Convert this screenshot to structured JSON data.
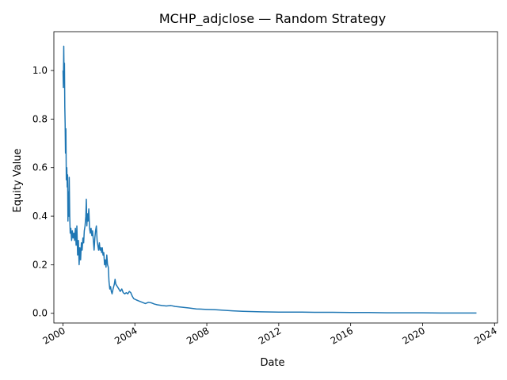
{
  "chart_data": {
    "type": "line",
    "title": "MCHP_adjclose — Random Strategy",
    "xlabel": "Date",
    "ylabel": "Equity Value",
    "x_ticks": [
      "2000",
      "2004",
      "2008",
      "2012",
      "2016",
      "2020",
      "2024"
    ],
    "y_ticks": [
      "0.0",
      "0.2",
      "0.4",
      "0.6",
      "0.8",
      "1.0"
    ],
    "xlim": [
      "1999-07-01",
      "2024-03-01"
    ],
    "ylim": [
      -0.04,
      1.16
    ],
    "grid": false,
    "line_color": "#1f77b4",
    "series": [
      {
        "points": [
          [
            "2000-01-03",
            1.0
          ],
          [
            "2000-01-10",
            0.93
          ],
          [
            "2000-01-18",
            1.1
          ],
          [
            "2000-01-25",
            0.95
          ],
          [
            "2000-02-01",
            1.03
          ],
          [
            "2000-02-08",
            0.85
          ],
          [
            "2000-02-15",
            0.78
          ],
          [
            "2000-02-22",
            0.66
          ],
          [
            "2000-03-01",
            0.76
          ],
          [
            "2000-03-10",
            0.55
          ],
          [
            "2000-03-20",
            0.6
          ],
          [
            "2000-03-28",
            0.52
          ],
          [
            "2000-04-05",
            0.57
          ],
          [
            "2000-04-12",
            0.38
          ],
          [
            "2000-04-20",
            0.5
          ],
          [
            "2000-04-28",
            0.4
          ],
          [
            "2000-05-08",
            0.56
          ],
          [
            "2000-05-18",
            0.4
          ],
          [
            "2000-05-28",
            0.33
          ],
          [
            "2000-06-10",
            0.35
          ],
          [
            "2000-06-25",
            0.3
          ],
          [
            "2000-07-10",
            0.34
          ],
          [
            "2000-07-25",
            0.31
          ],
          [
            "2000-08-10",
            0.33
          ],
          [
            "2000-08-25",
            0.3
          ],
          [
            "2000-09-10",
            0.35
          ],
          [
            "2000-09-25",
            0.28
          ],
          [
            "2000-10-10",
            0.36
          ],
          [
            "2000-10-25",
            0.24
          ],
          [
            "2000-11-10",
            0.3
          ],
          [
            "2000-11-25",
            0.2
          ],
          [
            "2000-12-10",
            0.27
          ],
          [
            "2000-12-25",
            0.22
          ],
          [
            "2001-01-10",
            0.29
          ],
          [
            "2001-01-25",
            0.26
          ],
          [
            "2001-02-10",
            0.31
          ],
          [
            "2001-02-25",
            0.29
          ],
          [
            "2001-03-10",
            0.34
          ],
          [
            "2001-03-25",
            0.36
          ],
          [
            "2001-04-10",
            0.4
          ],
          [
            "2001-04-20",
            0.47
          ],
          [
            "2001-05-01",
            0.36
          ],
          [
            "2001-05-12",
            0.41
          ],
          [
            "2001-05-25",
            0.38
          ],
          [
            "2001-06-10",
            0.43
          ],
          [
            "2001-06-25",
            0.35
          ],
          [
            "2001-07-10",
            0.33
          ],
          [
            "2001-07-25",
            0.35
          ],
          [
            "2001-08-10",
            0.32
          ],
          [
            "2001-08-25",
            0.34
          ],
          [
            "2001-09-10",
            0.3
          ],
          [
            "2001-09-25",
            0.26
          ],
          [
            "2001-10-10",
            0.31
          ],
          [
            "2001-10-25",
            0.34
          ],
          [
            "2001-11-10",
            0.36
          ],
          [
            "2001-11-25",
            0.3
          ],
          [
            "2001-12-10",
            0.28
          ],
          [
            "2001-12-25",
            0.26
          ],
          [
            "2002-01-10",
            0.29
          ],
          [
            "2002-01-25",
            0.26
          ],
          [
            "2002-02-10",
            0.27
          ],
          [
            "2002-02-25",
            0.25
          ],
          [
            "2002-03-10",
            0.27
          ],
          [
            "2002-03-25",
            0.24
          ],
          [
            "2002-04-10",
            0.25
          ],
          [
            "2002-04-25",
            0.2
          ],
          [
            "2002-05-10",
            0.22
          ],
          [
            "2002-05-25",
            0.19
          ],
          [
            "2002-06-10",
            0.24
          ],
          [
            "2002-06-25",
            0.2
          ],
          [
            "2002-07-10",
            0.19
          ],
          [
            "2002-07-25",
            0.13
          ],
          [
            "2002-08-10",
            0.1
          ],
          [
            "2002-08-25",
            0.11
          ],
          [
            "2002-09-10",
            0.09
          ],
          [
            "2002-09-25",
            0.08
          ],
          [
            "2002-10-15",
            0.1
          ],
          [
            "2002-11-10",
            0.12
          ],
          [
            "2002-11-25",
            0.14
          ],
          [
            "2002-12-10",
            0.12
          ],
          [
            "2003-01-10",
            0.11
          ],
          [
            "2003-02-10",
            0.1
          ],
          [
            "2003-03-10",
            0.09
          ],
          [
            "2003-04-10",
            0.1
          ],
          [
            "2003-05-10",
            0.085
          ],
          [
            "2003-06-10",
            0.08
          ],
          [
            "2003-07-10",
            0.085
          ],
          [
            "2003-08-10",
            0.08
          ],
          [
            "2003-09-10",
            0.09
          ],
          [
            "2003-10-10",
            0.085
          ],
          [
            "2003-11-10",
            0.07
          ],
          [
            "2003-12-10",
            0.06
          ],
          [
            "2004-02-01",
            0.055
          ],
          [
            "2004-04-01",
            0.05
          ],
          [
            "2004-06-01",
            0.045
          ],
          [
            "2004-08-01",
            0.04
          ],
          [
            "2004-10-01",
            0.045
          ],
          [
            "2004-12-01",
            0.043
          ],
          [
            "2005-02-01",
            0.038
          ],
          [
            "2005-04-01",
            0.035
          ],
          [
            "2005-07-01",
            0.032
          ],
          [
            "2005-10-01",
            0.03
          ],
          [
            "2006-01-01",
            0.032
          ],
          [
            "2006-04-01",
            0.028
          ],
          [
            "2006-07-01",
            0.026
          ],
          [
            "2006-10-01",
            0.024
          ],
          [
            "2007-01-01",
            0.022
          ],
          [
            "2007-06-01",
            0.018
          ],
          [
            "2008-01-01",
            0.016
          ],
          [
            "2008-06-01",
            0.015
          ],
          [
            "2009-01-01",
            0.012
          ],
          [
            "2009-06-01",
            0.01
          ],
          [
            "2010-01-01",
            0.008
          ],
          [
            "2011-01-01",
            0.006
          ],
          [
            "2012-01-01",
            0.005
          ],
          [
            "2013-01-01",
            0.005
          ],
          [
            "2014-01-01",
            0.004
          ],
          [
            "2015-01-01",
            0.004
          ],
          [
            "2016-01-01",
            0.003
          ],
          [
            "2017-01-01",
            0.003
          ],
          [
            "2018-01-01",
            0.002
          ],
          [
            "2019-01-01",
            0.002
          ],
          [
            "2020-01-01",
            0.002
          ],
          [
            "2021-01-01",
            0.001
          ],
          [
            "2022-01-01",
            0.001
          ],
          [
            "2022-12-30",
            0.001
          ]
        ]
      }
    ]
  }
}
